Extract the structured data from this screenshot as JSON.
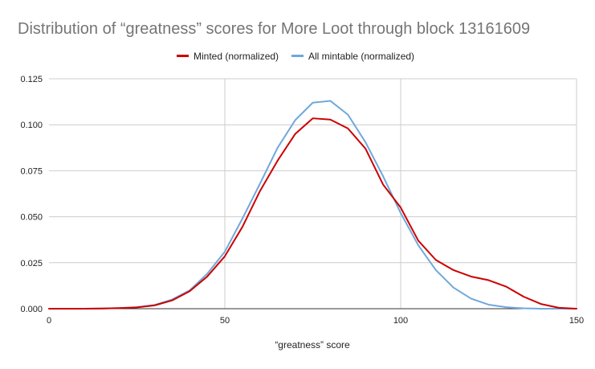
{
  "chart_data": {
    "type": "line",
    "title": "Distribution of “greatness” scores for More Loot through block 13161609",
    "xlabel": "“greatness” score",
    "ylabel": "",
    "xlim": [
      0,
      150
    ],
    "ylim": [
      0,
      0.125
    ],
    "xticks": [
      0,
      50,
      100,
      150
    ],
    "yticks": [
      0,
      0.025,
      0.05,
      0.075,
      0.1,
      0.125
    ],
    "ytick_labels": [
      "0.000",
      "0.025",
      "0.050",
      "0.075",
      "0.100",
      "0.125"
    ],
    "grid": true,
    "legend_position": "top-center",
    "series": [
      {
        "name": "Minted (normalized)",
        "color": "#cc0000",
        "x": [
          0,
          5,
          10,
          15,
          20,
          25,
          30,
          35,
          40,
          45,
          50,
          55,
          60,
          65,
          70,
          75,
          80,
          85,
          90,
          95,
          100,
          105,
          110,
          115,
          120,
          125,
          130,
          135,
          140,
          145,
          150
        ],
        "y": [
          0,
          0,
          0,
          0.0001,
          0.0003,
          0.0007,
          0.0018,
          0.0045,
          0.0095,
          0.0175,
          0.0285,
          0.0445,
          0.064,
          0.0805,
          0.095,
          0.1035,
          0.1028,
          0.098,
          0.087,
          0.0675,
          0.055,
          0.037,
          0.0265,
          0.021,
          0.0175,
          0.0155,
          0.012,
          0.0065,
          0.0025,
          0.0005,
          0
        ]
      },
      {
        "name": "All mintable (normalized)",
        "color": "#6fa8dc",
        "x": [
          0,
          5,
          10,
          15,
          20,
          25,
          30,
          35,
          40,
          45,
          50,
          55,
          60,
          65,
          70,
          75,
          80,
          85,
          90,
          95,
          100,
          105,
          110,
          115,
          120,
          125,
          130,
          135,
          140,
          145,
          150
        ],
        "y": [
          0,
          0,
          0,
          0.0001,
          0.0003,
          0.0008,
          0.002,
          0.005,
          0.01,
          0.019,
          0.031,
          0.049,
          0.068,
          0.0875,
          0.1025,
          0.112,
          0.113,
          0.1055,
          0.0905,
          0.072,
          0.052,
          0.0345,
          0.021,
          0.0115,
          0.0055,
          0.0022,
          0.0008,
          0.0002,
          0,
          0,
          0
        ]
      }
    ]
  }
}
